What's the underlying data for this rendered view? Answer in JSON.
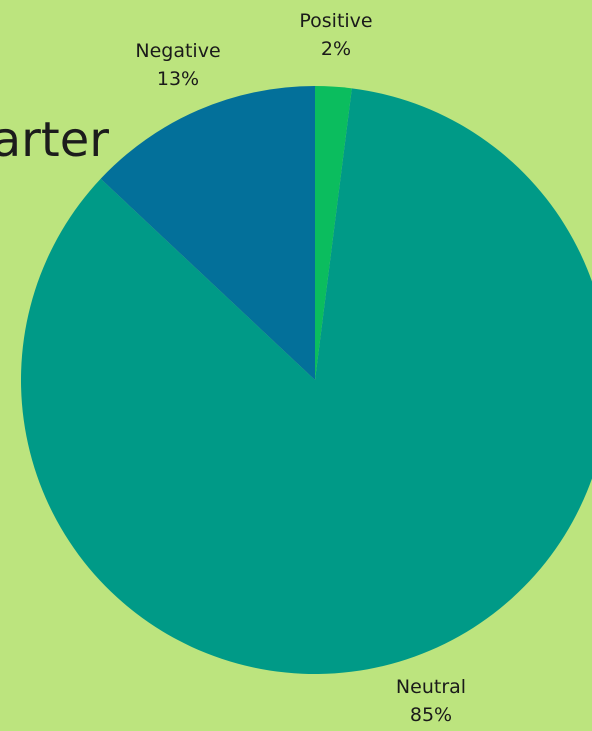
{
  "slide": {
    "title_fragment": "arter"
  },
  "chart_data": {
    "type": "pie",
    "title": "",
    "slices": [
      {
        "label": "Positive",
        "value": 2,
        "value_label": "2%",
        "color": "#0bbd5e"
      },
      {
        "label": "Neutral",
        "value": 85,
        "value_label": "85%",
        "color": "#009a87"
      },
      {
        "label": "Negative",
        "value": 13,
        "value_label": "13%",
        "color": "#03709a"
      }
    ],
    "start_angle_deg": 0,
    "direction": "clockwise",
    "legend": "none",
    "data_labels": "outside"
  }
}
